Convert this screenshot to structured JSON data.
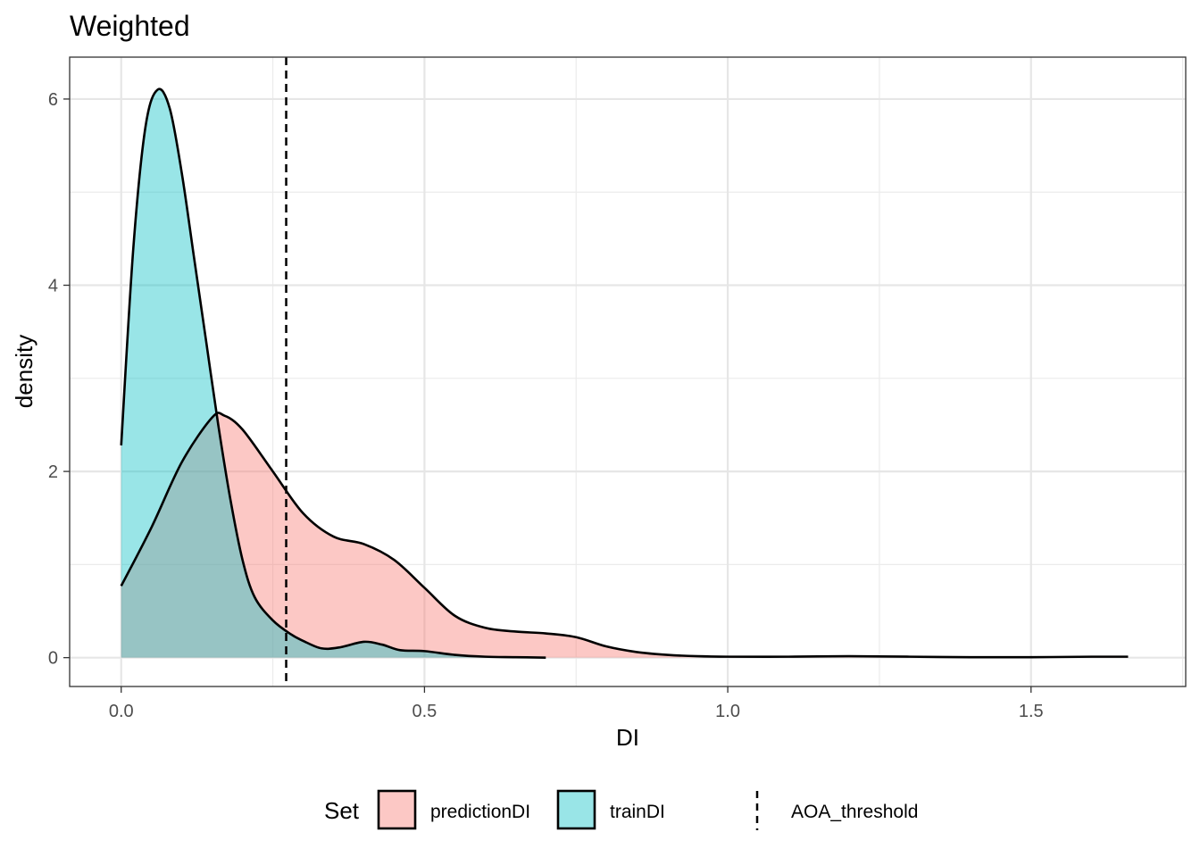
{
  "chart_data": {
    "type": "area",
    "title": "Weighted",
    "xlabel": "DI",
    "ylabel": "density",
    "xlim": [
      -0.085,
      1.755
    ],
    "ylim": [
      -0.31,
      6.45
    ],
    "x_ticks": [
      0.0,
      0.5,
      1.0,
      1.5
    ],
    "x_tick_labels": [
      "0.0",
      "0.5",
      "1.0",
      "1.5"
    ],
    "y_ticks": [
      0,
      2,
      4,
      6
    ],
    "y_tick_labels": [
      "0",
      "2",
      "4",
      "6"
    ],
    "grid": true,
    "legend_position": "bottom",
    "legend_title": "Set",
    "series": [
      {
        "name": "predictionDI",
        "color": "#F8766D",
        "fill_opacity": 0.4,
        "x": [
          0.0,
          0.05,
          0.1,
          0.15,
          0.17,
          0.2,
          0.25,
          0.3,
          0.35,
          0.4,
          0.45,
          0.5,
          0.55,
          0.6,
          0.65,
          0.7,
          0.75,
          0.8,
          0.85,
          0.9,
          0.95,
          1.0,
          1.1,
          1.2,
          1.3,
          1.4,
          1.5,
          1.6,
          1.66
        ],
        "y": [
          0.77,
          1.4,
          2.1,
          2.58,
          2.6,
          2.45,
          2.0,
          1.55,
          1.3,
          1.22,
          1.05,
          0.75,
          0.45,
          0.32,
          0.28,
          0.26,
          0.22,
          0.12,
          0.06,
          0.03,
          0.015,
          0.01,
          0.01,
          0.015,
          0.01,
          0.005,
          0.005,
          0.01,
          0.01
        ]
      },
      {
        "name": "trainDI",
        "color": "#00BFC4",
        "fill_opacity": 0.4,
        "x": [
          0.0,
          0.02,
          0.04,
          0.06,
          0.08,
          0.1,
          0.12,
          0.14,
          0.16,
          0.18,
          0.2,
          0.22,
          0.25,
          0.28,
          0.3,
          0.33,
          0.36,
          0.4,
          0.43,
          0.46,
          0.5,
          0.55,
          0.6,
          0.65,
          0.7
        ],
        "y": [
          2.28,
          4.4,
          5.7,
          6.1,
          5.9,
          5.2,
          4.3,
          3.4,
          2.5,
          1.7,
          1.05,
          0.65,
          0.4,
          0.25,
          0.18,
          0.1,
          0.11,
          0.17,
          0.14,
          0.08,
          0.07,
          0.03,
          0.01,
          0.005,
          0.0
        ]
      }
    ],
    "reference_lines": [
      {
        "name": "AOA_threshold",
        "orientation": "vertical",
        "x": 0.272,
        "style": "dashed",
        "color": "#000000"
      }
    ]
  },
  "legend": {
    "title": "Set",
    "items": [
      {
        "label": "predictionDI",
        "color": "#F8766D",
        "kind": "fill"
      },
      {
        "label": "trainDI",
        "color": "#00BFC4",
        "kind": "fill"
      },
      {
        "label": "AOA_threshold",
        "color": "#000000",
        "kind": "dashed-line"
      }
    ]
  }
}
